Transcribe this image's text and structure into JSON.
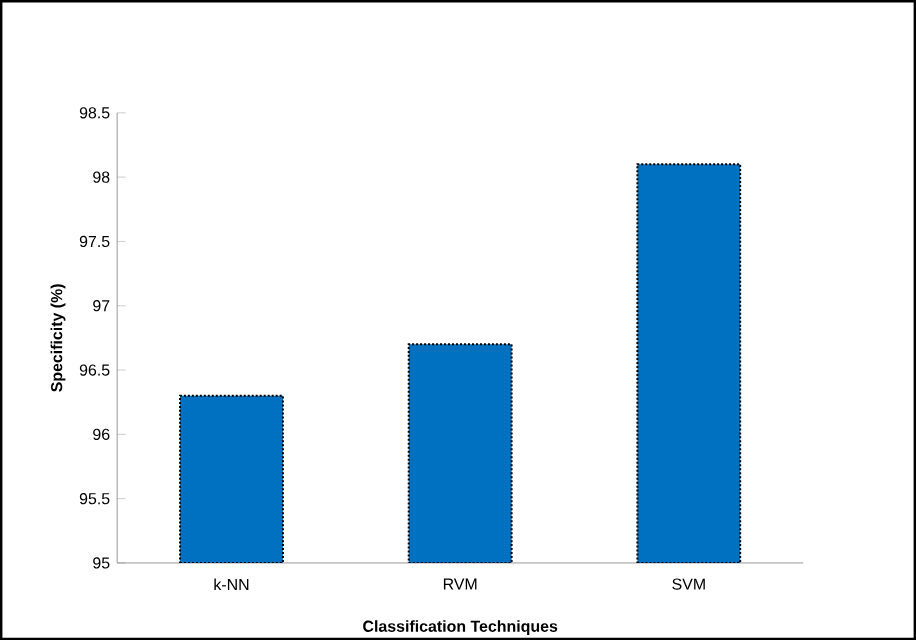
{
  "chart_data": {
    "type": "bar",
    "xlabel": "Classification Techniques",
    "ylabel": "Specificity (%)",
    "categories": [
      "k-NN",
      "RVM",
      "SVM"
    ],
    "values": [
      96.3,
      96.7,
      98.1
    ],
    "color": "#0070c0",
    "ylim": [
      95,
      98.5
    ],
    "yticks": [
      95,
      95.5,
      96,
      96.5,
      97,
      97.5,
      98,
      98.5
    ],
    "grid": false
  }
}
